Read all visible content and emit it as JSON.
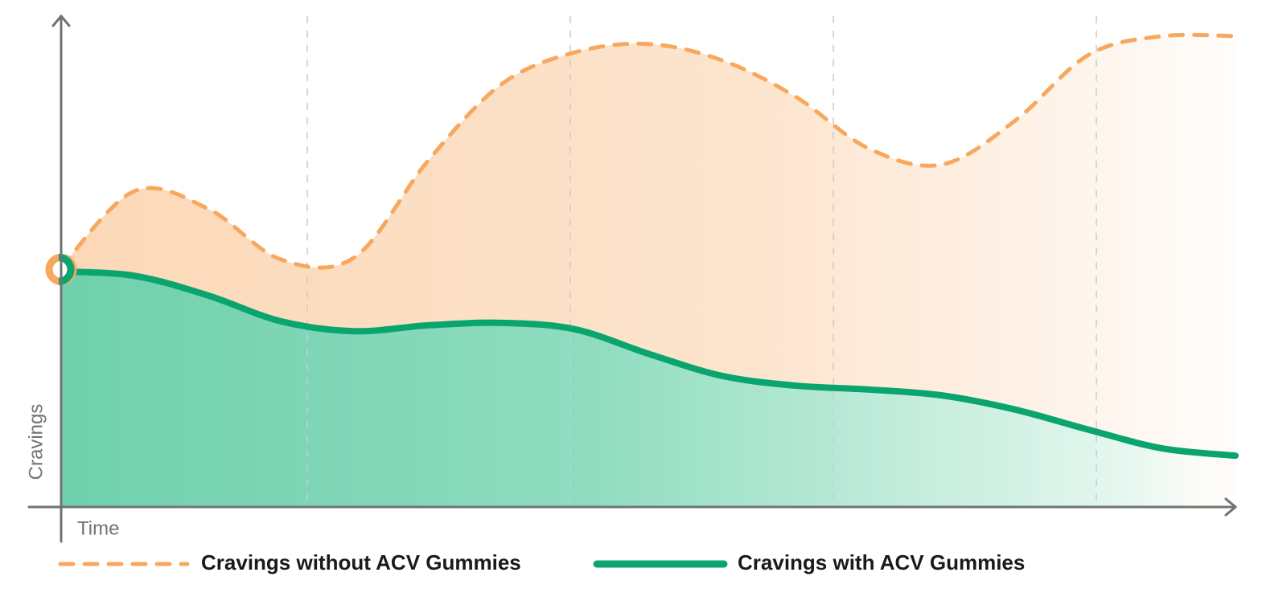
{
  "chart_data": {
    "type": "area",
    "x_label": "Time",
    "y_label": "Cravings",
    "categories": [
      null,
      null,
      null,
      null,
      null,
      null,
      null,
      null,
      null,
      null,
      null,
      null,
      null,
      null,
      null,
      null,
      null
    ],
    "ylim": [
      0,
      100
    ],
    "series": [
      {
        "name": "Cravings without ACV Gummies",
        "color": "#f7a85e",
        "dashed": true,
        "values": [
          48.7,
          64.3,
          60.7,
          50.3,
          50.8,
          70.5,
          86.1,
          92.6,
          94.3,
          91.0,
          83.6,
          73.0,
          69.7,
          78.7,
          92.1,
          95.9,
          95.9
        ]
      },
      {
        "name": "Cravings with ACV Gummies",
        "color": "#0aa56f",
        "dashed": false,
        "values": [
          47.9,
          47.0,
          43.0,
          37.7,
          35.7,
          36.9,
          37.4,
          36.1,
          31.1,
          26.6,
          24.6,
          23.8,
          22.6,
          19.7,
          15.6,
          11.8,
          10.3
        ]
      }
    ]
  }
}
